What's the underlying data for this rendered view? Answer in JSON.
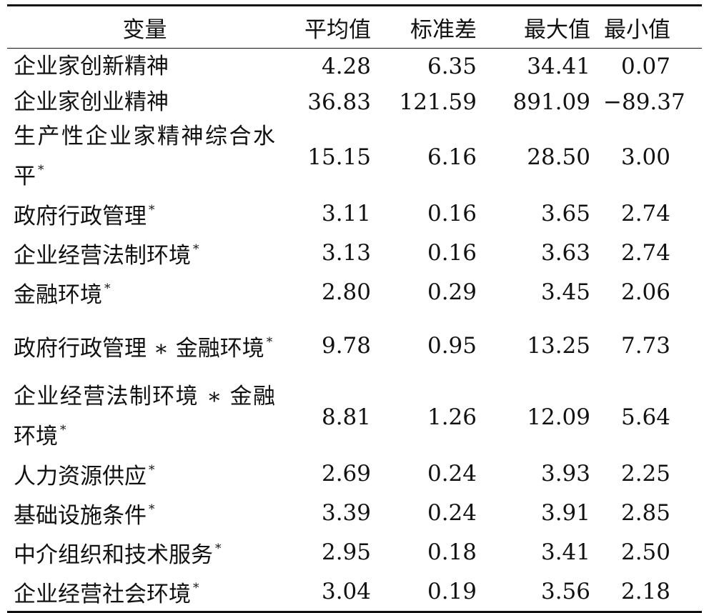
{
  "table": {
    "headers": {
      "variable": "变量",
      "mean": "平均值",
      "std": "标准差",
      "max": "最大值",
      "min": "最小值"
    },
    "rows": [
      {
        "label": "企业家创新精神",
        "star": "",
        "mean": "4.28",
        "std": "6.35",
        "max": "34.41",
        "min": "0.07"
      },
      {
        "label": "企业家创业精神",
        "star": "",
        "mean": "36.83",
        "std": "121.59",
        "max": "891.09",
        "min": "−89.37"
      },
      {
        "label": "生产性企业家精神综合水平",
        "star": "*",
        "mean": "15.15",
        "std": "6.16",
        "max": "28.50",
        "min": "3.00"
      },
      {
        "label": "政府行政管理",
        "star": "*",
        "mean": "3.11",
        "std": "0.16",
        "max": "3.65",
        "min": "2.74"
      },
      {
        "label": "企业经营法制环境",
        "star": "*",
        "mean": "3.13",
        "std": "0.16",
        "max": "3.63",
        "min": "2.74"
      },
      {
        "label": "金融环境",
        "star": "*",
        "mean": "2.80",
        "std": "0.29",
        "max": "3.45",
        "min": "2.06"
      },
      {
        "label": "政府行政管理 ∗ 金融环境",
        "star": "*",
        "mean": "9.78",
        "std": "0.95",
        "max": "13.25",
        "min": "7.73"
      },
      {
        "label": "企业经营法制环境 ∗ 金融环境",
        "star": "*",
        "mean": "8.81",
        "std": "1.26",
        "max": "12.09",
        "min": "5.64"
      },
      {
        "label": "人力资源供应",
        "star": "*",
        "mean": "2.69",
        "std": "0.24",
        "max": "3.93",
        "min": "2.25"
      },
      {
        "label": "基础设施条件",
        "star": "*",
        "mean": "3.39",
        "std": "0.24",
        "max": "3.91",
        "min": "2.85"
      },
      {
        "label": "中介组织和技术服务",
        "star": "*",
        "mean": "2.95",
        "std": "0.18",
        "max": "3.41",
        "min": "2.50"
      },
      {
        "label": "企业经营社会环境",
        "star": "*",
        "mean": "3.04",
        "std": "0.19",
        "max": "3.56",
        "min": "2.18"
      }
    ]
  }
}
